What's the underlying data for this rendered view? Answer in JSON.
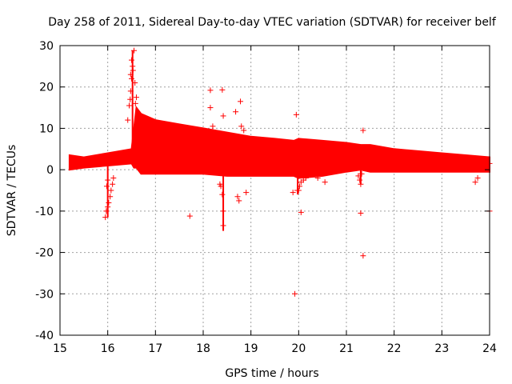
{
  "chart_data": {
    "type": "scatter",
    "title": "Day 258 of 2011, Sidereal Day-to-day VTEC variation (SDTVAR) for receiver belf",
    "xlabel": "GPS time / hours",
    "ylabel": "SDTVAR / TECUs",
    "xlim": [
      15,
      24
    ],
    "ylim": [
      -40,
      30
    ],
    "xticks": [
      15,
      16,
      17,
      18,
      19,
      20,
      21,
      22,
      23,
      24
    ],
    "yticks": [
      -40,
      -30,
      -20,
      -10,
      0,
      10,
      20,
      30
    ],
    "xtick_labels": [
      "15",
      "16",
      "17",
      "18",
      "19",
      "20",
      "21",
      "22",
      "23",
      "24"
    ],
    "ytick_labels": [
      "-40",
      "-30",
      "-20",
      "-10",
      "0",
      "10",
      "20",
      "30"
    ],
    "grid": true,
    "marker": "+",
    "color": "#ff0000",
    "band": {
      "x": [
        15.2,
        15.5,
        16.0,
        16.5,
        16.55,
        16.6,
        16.7,
        17.0,
        17.5,
        18.0,
        18.5,
        19.0,
        19.5,
        19.9,
        20.0,
        20.5,
        21.0,
        21.3,
        21.5,
        22.0,
        22.5,
        23.0,
        23.5,
        24.0
      ],
      "upper": [
        3.5,
        3.0,
        4.0,
        5.0,
        10.0,
        15.0,
        13.5,
        12.0,
        11.0,
        10.0,
        9.0,
        8.0,
        7.5,
        7.0,
        7.5,
        7.0,
        6.5,
        6.0,
        6.0,
        5.0,
        4.5,
        4.0,
        3.5,
        3.0
      ],
      "lower": [
        0.0,
        0.5,
        1.0,
        1.5,
        0.5,
        0.5,
        -1.0,
        -1.0,
        -1.0,
        -1.0,
        -1.5,
        -1.5,
        -1.5,
        -1.5,
        -2.0,
        -1.5,
        -0.5,
        0.0,
        -0.5,
        -0.5,
        -0.5,
        -0.5,
        -0.5,
        -0.5
      ]
    },
    "outliers": [
      [
        15.95,
        -11.5
      ],
      [
        15.97,
        -10.0
      ],
      [
        16.0,
        -9.0
      ],
      [
        16.02,
        -8.0
      ],
      [
        16.05,
        -6.5
      ],
      [
        16.07,
        -5.0
      ],
      [
        16.1,
        -3.5
      ],
      [
        16.12,
        -2.0
      ],
      [
        16.0,
        -2.5
      ],
      [
        15.98,
        -4.0
      ],
      [
        16.42,
        12.0
      ],
      [
        16.45,
        15.5
      ],
      [
        16.47,
        17.0
      ],
      [
        16.48,
        19.0
      ],
      [
        16.5,
        22.0
      ],
      [
        16.5,
        26.5
      ],
      [
        16.52,
        25.0
      ],
      [
        16.53,
        24.0
      ],
      [
        16.55,
        28.8
      ],
      [
        16.57,
        21.0
      ],
      [
        16.58,
        16.0
      ],
      [
        16.6,
        17.5
      ],
      [
        16.48,
        23.0
      ],
      [
        17.72,
        -11.2
      ],
      [
        18.15,
        19.2
      ],
      [
        18.15,
        15.0
      ],
      [
        18.2,
        10.5
      ],
      [
        18.25,
        9.0
      ],
      [
        18.35,
        -3.5
      ],
      [
        18.37,
        -4.0
      ],
      [
        18.4,
        -6.0
      ],
      [
        18.42,
        -10.0
      ],
      [
        18.42,
        -13.5
      ],
      [
        18.4,
        19.3
      ],
      [
        18.42,
        13.0
      ],
      [
        18.68,
        14.0
      ],
      [
        18.72,
        -6.5
      ],
      [
        18.75,
        -7.5
      ],
      [
        18.78,
        16.5
      ],
      [
        18.8,
        10.5
      ],
      [
        18.85,
        9.5
      ],
      [
        18.9,
        -5.5
      ],
      [
        19.88,
        -5.5
      ],
      [
        19.92,
        -30.0
      ],
      [
        19.95,
        13.3
      ],
      [
        19.97,
        -5.0
      ],
      [
        20.0,
        -5.0
      ],
      [
        20.02,
        -4.0
      ],
      [
        20.05,
        -10.3
      ],
      [
        20.05,
        -3.0
      ],
      [
        20.1,
        -2.5
      ],
      [
        20.15,
        -2.0
      ],
      [
        20.4,
        -2.0
      ],
      [
        20.55,
        -3.0
      ],
      [
        21.25,
        -1.5
      ],
      [
        21.28,
        -2.5
      ],
      [
        21.3,
        -3.5
      ],
      [
        21.3,
        -10.5
      ],
      [
        21.35,
        -20.8
      ],
      [
        21.35,
        9.5
      ],
      [
        21.32,
        -1.0
      ],
      [
        23.7,
        -3.0
      ],
      [
        23.75,
        -2.0
      ],
      [
        24.0,
        -10.0
      ],
      [
        24.0,
        1.5
      ]
    ]
  }
}
